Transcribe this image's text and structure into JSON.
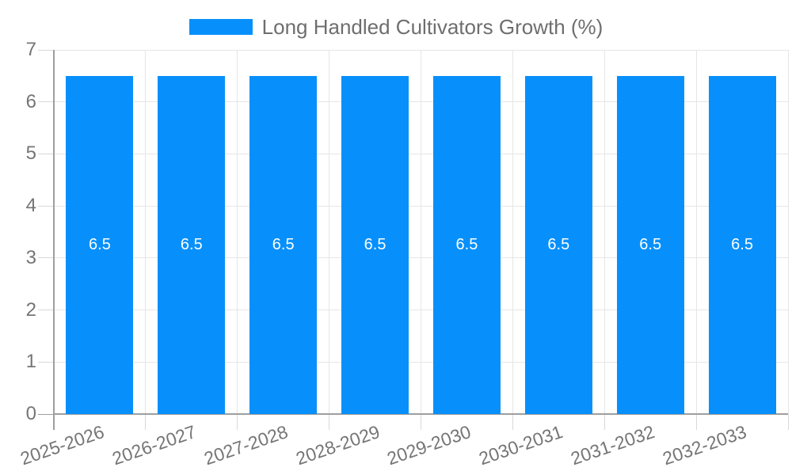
{
  "legend": {
    "label": "Long Handled Cultivators Growth (%)"
  },
  "chart_data": {
    "type": "bar",
    "title": "",
    "categories": [
      "2025-2026",
      "2026-2027",
      "2027-2028",
      "2028-2029",
      "2029-2030",
      "2030-2031",
      "2031-2032",
      "2032-2033"
    ],
    "values": [
      6.5,
      6.5,
      6.5,
      6.5,
      6.5,
      6.5,
      6.5,
      6.5
    ],
    "series": [
      {
        "name": "Long Handled Cultivators Growth (%)",
        "values": [
          6.5,
          6.5,
          6.5,
          6.5,
          6.5,
          6.5,
          6.5,
          6.5
        ]
      }
    ],
    "xlabel": "",
    "ylabel": "",
    "ylim": [
      0,
      7
    ],
    "yticks": [
      0,
      1,
      2,
      3,
      4,
      5,
      6,
      7
    ],
    "grid": true,
    "legend_position": "top-center",
    "bar_label_position": "inside-center",
    "x_label_rotation_deg": -19,
    "colors": {
      "bar": "#0790fb",
      "bar_label": "#ffffff",
      "axis_line": "#9e9e9e",
      "gridline": "#e6e6e6",
      "tick": "#d9d9d9",
      "axis_text": "#757575",
      "legend_text": "#6e6e6e",
      "background": "#ffffff"
    }
  }
}
